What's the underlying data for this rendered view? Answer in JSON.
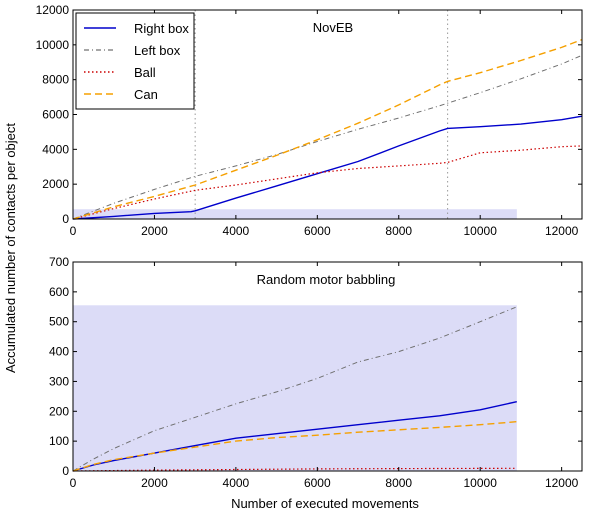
{
  "chart_data": {
    "shared": {
      "ylabel": "Accumulated number of contacts per object",
      "xlabel": "Number of executed movements"
    },
    "legend": {
      "placement": "top-left",
      "entries": [
        {
          "key": "right_box",
          "label": "Right box",
          "color": "#0000cc",
          "style": "solid"
        },
        {
          "key": "left_box",
          "label": "Left box",
          "color": "#707070",
          "style": "dashdot"
        },
        {
          "key": "ball",
          "label": "Ball",
          "color": "#cc0000",
          "style": "dotted"
        },
        {
          "key": "can",
          "label": "Can",
          "color": "#f5a000",
          "style": "dashed"
        }
      ]
    },
    "charts": [
      {
        "type": "line",
        "title": "NovEB",
        "xlim": [
          0,
          12500
        ],
        "ylim": [
          0,
          12000
        ],
        "xticks": [
          0,
          2000,
          4000,
          6000,
          8000,
          10000,
          12000
        ],
        "yticks": [
          0,
          2000,
          4000,
          6000,
          8000,
          10000,
          12000
        ],
        "shaded_region": {
          "x": [
            0,
            10900
          ],
          "y": [
            0,
            560
          ],
          "color": "#dcdcf7"
        },
        "vlines": [
          3000,
          9200
        ],
        "series": [
          {
            "key": "right_box",
            "x": [
              0,
              1000,
              2000,
              2900,
              3000,
              4000,
              5000,
              6000,
              7000,
              8000,
              9000,
              9200,
              10000,
              11000,
              12000,
              12500
            ],
            "y": [
              0,
              150,
              320,
              420,
              470,
              1200,
              1900,
              2600,
              3300,
              4200,
              5050,
              5200,
              5300,
              5450,
              5700,
              5900
            ]
          },
          {
            "key": "left_box",
            "x": [
              0,
              1000,
              2000,
              3000,
              4000,
              5000,
              6000,
              7000,
              8000,
              9000,
              10000,
              11000,
              12000,
              12500
            ],
            "y": [
              0,
              900,
              1700,
              2450,
              3050,
              3700,
              4450,
              5150,
              5800,
              6500,
              7250,
              8050,
              8900,
              9400
            ]
          },
          {
            "key": "ball",
            "x": [
              0,
              1000,
              2000,
              3000,
              4000,
              5000,
              6000,
              7000,
              8000,
              9000,
              9200,
              10000,
              11000,
              12000,
              12500
            ],
            "y": [
              0,
              600,
              1150,
              1650,
              1950,
              2300,
              2650,
              2900,
              3050,
              3200,
              3250,
              3800,
              3950,
              4150,
              4200
            ]
          },
          {
            "key": "can",
            "x": [
              0,
              1000,
              2000,
              3000,
              4000,
              5000,
              6000,
              7000,
              8000,
              9000,
              9200,
              10000,
              11000,
              12000,
              12500
            ],
            "y": [
              0,
              700,
              1300,
              1950,
              2800,
              3650,
              4550,
              5500,
              6550,
              7700,
              7900,
              8400,
              9100,
              9850,
              10300
            ]
          }
        ]
      },
      {
        "type": "line",
        "title": "Random motor babbling",
        "xlim": [
          0,
          12500
        ],
        "ylim": [
          0,
          700
        ],
        "xticks": [
          0,
          2000,
          4000,
          6000,
          8000,
          10000,
          12000
        ],
        "yticks": [
          0,
          100,
          200,
          300,
          400,
          500,
          600,
          700
        ],
        "shaded_region": {
          "x": [
            0,
            10900
          ],
          "y": [
            0,
            555
          ],
          "color": "#dcdcf7"
        },
        "series": [
          {
            "key": "right_box",
            "x": [
              0,
              500,
              1000,
              2000,
              3000,
              4000,
              5000,
              6000,
              7000,
              8000,
              9000,
              10000,
              10900
            ],
            "y": [
              0,
              20,
              35,
              60,
              85,
              110,
              125,
              140,
              155,
              170,
              185,
              205,
              232
            ]
          },
          {
            "key": "left_box",
            "x": [
              0,
              500,
              1000,
              2000,
              3000,
              4000,
              5000,
              6000,
              7000,
              8000,
              9000,
              10000,
              10900
            ],
            "y": [
              0,
              40,
              75,
              135,
              180,
              225,
              265,
              310,
              365,
              400,
              445,
              500,
              550
            ]
          },
          {
            "key": "ball",
            "x": [
              0,
              2000,
              4000,
              6000,
              8000,
              10900
            ],
            "y": [
              0,
              3,
              5,
              7,
              8,
              9
            ]
          },
          {
            "key": "can",
            "x": [
              0,
              500,
              1000,
              2000,
              3000,
              4000,
              5000,
              6000,
              7000,
              8000,
              9000,
              10000,
              10900
            ],
            "y": [
              0,
              22,
              38,
              60,
              80,
              100,
              112,
              120,
              130,
              138,
              146,
              155,
              165
            ]
          }
        ]
      }
    ]
  }
}
